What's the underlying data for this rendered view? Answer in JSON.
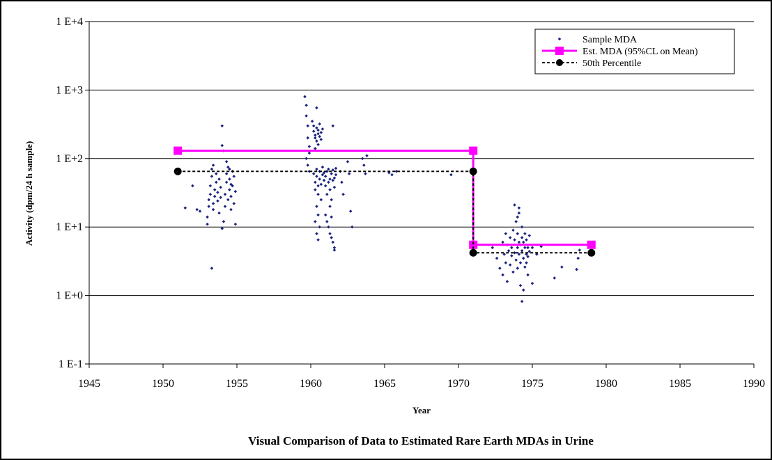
{
  "chart_data": {
    "type": "scatter",
    "title": "Visual Comparison of Data to Estimated Rare Earth MDAs in Urine",
    "xlabel": "Year",
    "ylabel": "Activity (dpm/24 h sample)",
    "xlim": [
      1945,
      1990
    ],
    "ylim": [
      0.1,
      10000
    ],
    "y_scale": "log",
    "grid": "horizontal major",
    "legend_position": "top-right",
    "x_ticks": [
      "1945",
      "1950",
      "1955",
      "1960",
      "1965",
      "1970",
      "1975",
      "1980",
      "1985",
      "1990"
    ],
    "y_ticks": [
      "1 E-1",
      "1 E+0",
      "1 E+1",
      "1 E+2",
      "1 E+3",
      "1 E+4"
    ],
    "series": [
      {
        "name": "Sample MDA",
        "kind": "scatter",
        "color": "#1a237e",
        "points": [
          [
            1951.5,
            19
          ],
          [
            1952.0,
            40
          ],
          [
            1952.3,
            18
          ],
          [
            1952.5,
            17
          ],
          [
            1953.0,
            11
          ],
          [
            1953.0,
            14
          ],
          [
            1953.1,
            20
          ],
          [
            1953.1,
            25
          ],
          [
            1953.2,
            30
          ],
          [
            1953.2,
            40
          ],
          [
            1953.3,
            55
          ],
          [
            1953.3,
            70
          ],
          [
            1953.4,
            18
          ],
          [
            1953.4,
            22
          ],
          [
            1953.5,
            28
          ],
          [
            1953.5,
            35
          ],
          [
            1953.6,
            45
          ],
          [
            1953.6,
            60
          ],
          [
            1953.7,
            24
          ],
          [
            1953.7,
            32
          ],
          [
            1953.8,
            16
          ],
          [
            1953.8,
            50
          ],
          [
            1953.9,
            27
          ],
          [
            1953.9,
            38
          ],
          [
            1953.4,
            80
          ],
          [
            1953.3,
            2.5
          ],
          [
            1954.0,
            300
          ],
          [
            1954.0,
            155
          ],
          [
            1954.1,
            130
          ],
          [
            1954.0,
            9.5
          ],
          [
            1954.1,
            12
          ],
          [
            1954.2,
            20
          ],
          [
            1954.2,
            30
          ],
          [
            1954.3,
            45
          ],
          [
            1954.3,
            60
          ],
          [
            1954.4,
            75
          ],
          [
            1954.4,
            25
          ],
          [
            1954.5,
            35
          ],
          [
            1954.5,
            50
          ],
          [
            1954.6,
            18
          ],
          [
            1954.6,
            28
          ],
          [
            1954.7,
            40
          ],
          [
            1954.7,
            65
          ],
          [
            1954.8,
            22
          ],
          [
            1954.8,
            55
          ],
          [
            1954.9,
            11
          ],
          [
            1954.9,
            33
          ],
          [
            1954.5,
            70
          ],
          [
            1954.3,
            90
          ],
          [
            1954.6,
            42
          ],
          [
            1959.6,
            800
          ],
          [
            1959.7,
            600
          ],
          [
            1959.7,
            420
          ],
          [
            1959.8,
            300
          ],
          [
            1959.8,
            200
          ],
          [
            1959.9,
            150
          ],
          [
            1959.9,
            120
          ],
          [
            1959.7,
            100
          ],
          [
            1959.8,
            80
          ],
          [
            1959.9,
            65
          ],
          [
            1960.1,
            350
          ],
          [
            1960.2,
            300
          ],
          [
            1960.2,
            250
          ],
          [
            1960.3,
            220
          ],
          [
            1960.3,
            200
          ],
          [
            1960.4,
            280
          ],
          [
            1960.4,
            180
          ],
          [
            1960.5,
            260
          ],
          [
            1960.5,
            230
          ],
          [
            1960.6,
            210
          ],
          [
            1960.6,
            320
          ],
          [
            1960.7,
            240
          ],
          [
            1960.7,
            190
          ],
          [
            1960.4,
            550
          ],
          [
            1960.8,
            270
          ],
          [
            1960.5,
            160
          ],
          [
            1960.3,
            140
          ],
          [
            1960.2,
            60
          ],
          [
            1960.3,
            45
          ],
          [
            1960.3,
            35
          ],
          [
            1960.4,
            55
          ],
          [
            1960.4,
            70
          ],
          [
            1960.5,
            40
          ],
          [
            1960.5,
            30
          ],
          [
            1960.6,
            50
          ],
          [
            1960.6,
            65
          ],
          [
            1960.7,
            25
          ],
          [
            1960.7,
            42
          ],
          [
            1960.8,
            58
          ],
          [
            1960.8,
            75
          ],
          [
            1960.9,
            48
          ],
          [
            1960.9,
            62
          ],
          [
            1960.4,
            20
          ],
          [
            1960.5,
            15
          ],
          [
            1960.3,
            12
          ],
          [
            1960.6,
            10
          ],
          [
            1960.4,
            8
          ],
          [
            1960.5,
            6.5
          ],
          [
            1961.0,
            40
          ],
          [
            1961.0,
            55
          ],
          [
            1961.1,
            65
          ],
          [
            1961.1,
            30
          ],
          [
            1961.2,
            45
          ],
          [
            1961.2,
            70
          ],
          [
            1961.3,
            50
          ],
          [
            1961.3,
            35
          ],
          [
            1961.4,
            60
          ],
          [
            1961.4,
            25
          ],
          [
            1961.5,
            48
          ],
          [
            1961.5,
            68
          ],
          [
            1961.6,
            52
          ],
          [
            1961.6,
            38
          ],
          [
            1961.7,
            58
          ],
          [
            1961.7,
            72
          ],
          [
            1961.0,
            15
          ],
          [
            1961.1,
            12
          ],
          [
            1961.2,
            10
          ],
          [
            1961.3,
            8
          ],
          [
            1961.4,
            7
          ],
          [
            1961.5,
            6
          ],
          [
            1961.6,
            5
          ],
          [
            1961.6,
            4.6
          ],
          [
            1961.5,
            300
          ],
          [
            1961.3,
            20
          ],
          [
            1961.4,
            14
          ],
          [
            1962.0,
            65
          ],
          [
            1962.1,
            45
          ],
          [
            1962.2,
            30
          ],
          [
            1962.5,
            90
          ],
          [
            1962.6,
            60
          ],
          [
            1962.7,
            17
          ],
          [
            1962.8,
            10
          ],
          [
            1963.5,
            100
          ],
          [
            1963.6,
            80
          ],
          [
            1963.7,
            60
          ],
          [
            1963.8,
            110
          ],
          [
            1965.3,
            62
          ],
          [
            1965.5,
            58
          ],
          [
            1965.8,
            65
          ],
          [
            1969.5,
            58
          ],
          [
            1972.3,
            5
          ],
          [
            1972.6,
            3.5
          ],
          [
            1972.8,
            2.5
          ],
          [
            1973.0,
            6
          ],
          [
            1973.0,
            2
          ],
          [
            1973.1,
            4
          ],
          [
            1973.2,
            8
          ],
          [
            1973.2,
            3
          ],
          [
            1973.3,
            5.5
          ],
          [
            1973.3,
            1.6
          ],
          [
            1973.4,
            4.5
          ],
          [
            1973.5,
            7
          ],
          [
            1973.5,
            2.8
          ],
          [
            1973.6,
            5
          ],
          [
            1973.6,
            3.8
          ],
          [
            1973.7,
            9
          ],
          [
            1973.7,
            2.2
          ],
          [
            1973.8,
            6.5
          ],
          [
            1973.8,
            4.2
          ],
          [
            1973.9,
            12
          ],
          [
            1973.9,
            3.3
          ],
          [
            1973.8,
            21
          ],
          [
            1974.0,
            5
          ],
          [
            1974.0,
            8
          ],
          [
            1974.0,
            2.5
          ],
          [
            1974.1,
            4
          ],
          [
            1974.1,
            6
          ],
          [
            1974.1,
            16
          ],
          [
            1974.2,
            3
          ],
          [
            1974.2,
            5.5
          ],
          [
            1974.2,
            1.4
          ],
          [
            1974.3,
            7
          ],
          [
            1974.3,
            4.5
          ],
          [
            1974.3,
            10
          ],
          [
            1974.3,
            0.82
          ],
          [
            1974.4,
            3.5
          ],
          [
            1974.4,
            6
          ],
          [
            1974.4,
            1.2
          ],
          [
            1974.5,
            5
          ],
          [
            1974.5,
            8
          ],
          [
            1974.5,
            2.6
          ],
          [
            1974.6,
            4
          ],
          [
            1974.6,
            6.5
          ],
          [
            1974.6,
            3
          ],
          [
            1974.7,
            5
          ],
          [
            1974.7,
            3.7
          ],
          [
            1974.7,
            2
          ],
          [
            1974.8,
            4.4
          ],
          [
            1974.8,
            7.5
          ],
          [
            1974.1,
            19
          ],
          [
            1974.0,
            14
          ],
          [
            1975.0,
            1.5
          ],
          [
            1975.0,
            5
          ],
          [
            1975.3,
            4
          ],
          [
            1975.6,
            5.2
          ],
          [
            1976.5,
            1.8
          ],
          [
            1977.0,
            2.6
          ],
          [
            1978.0,
            2.4
          ],
          [
            1978.1,
            3.5
          ],
          [
            1978.2,
            4.6
          ]
        ]
      },
      {
        "name": "Est. MDA (95%CL on Mean)",
        "kind": "step",
        "color": "#ff00ff",
        "points": [
          [
            1951,
            130
          ],
          [
            1971,
            130
          ],
          [
            1971,
            5.5
          ],
          [
            1979,
            5.5
          ]
        ]
      },
      {
        "name": "50th Percentile",
        "kind": "step-dashed",
        "color": "#000000",
        "points": [
          [
            1951,
            65
          ],
          [
            1971,
            65
          ],
          [
            1971,
            4.2
          ],
          [
            1979,
            4.2
          ]
        ]
      }
    ]
  }
}
